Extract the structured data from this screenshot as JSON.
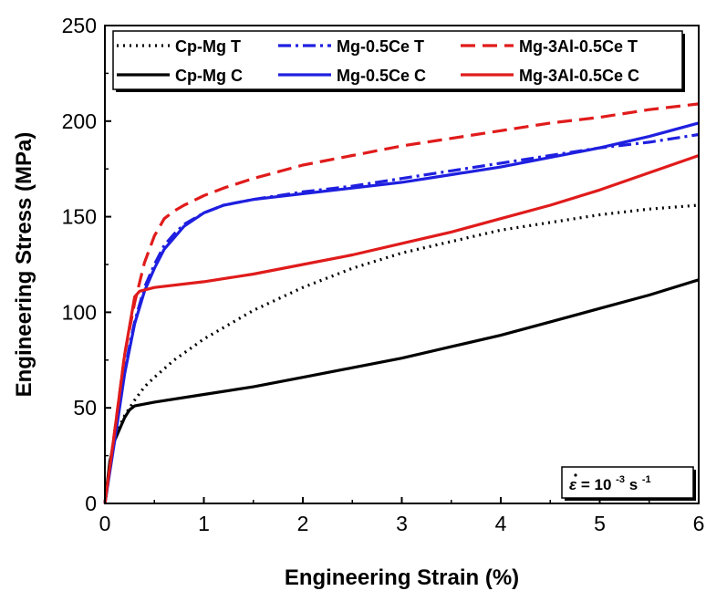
{
  "chart_data": {
    "type": "line",
    "xlabel": "Engineering Strain (%)",
    "ylabel": "Engineering Stress (MPa)",
    "xlim": [
      0,
      6
    ],
    "ylim": [
      0,
      250
    ],
    "xticks": [
      0,
      1,
      2,
      3,
      4,
      5,
      6
    ],
    "yticks": [
      0,
      50,
      100,
      150,
      200,
      250
    ],
    "grid": false,
    "legend_position": "top",
    "annotation": {
      "symbol": "ε",
      "text": "= 10",
      "exponent": "-3",
      "unit": " s",
      "unit_exponent": "-1"
    },
    "series": [
      {
        "name": "Cp-Mg T",
        "color": "#000000",
        "style": "dotted",
        "x": [
          0,
          0.1,
          0.2,
          0.3,
          0.4,
          0.5,
          0.7,
          1.0,
          1.5,
          2.0,
          2.5,
          3.0,
          3.5,
          4.0,
          4.5,
          5.0,
          5.5,
          6.0
        ],
        "y": [
          0,
          35,
          46,
          54,
          61,
          66,
          75,
          86,
          101,
          113,
          123,
          131,
          137,
          143,
          147,
          151,
          154,
          156
        ]
      },
      {
        "name": "Mg-0.5Ce T",
        "color": "#1f1fe0",
        "style": "dashdot",
        "x": [
          0,
          0.1,
          0.2,
          0.3,
          0.4,
          0.5,
          0.6,
          0.7,
          0.8,
          1.0,
          1.2,
          1.5,
          2.0,
          2.5,
          3.0,
          3.5,
          4.0,
          4.5,
          5.0,
          5.5,
          6.0
        ],
        "y": [
          0,
          35,
          70,
          95,
          113,
          125,
          135,
          141,
          146,
          152,
          156,
          159,
          163,
          166,
          170,
          174,
          178,
          182,
          186,
          189,
          193
        ]
      },
      {
        "name": "Mg-3Al-0.5Ce T",
        "color": "#e01b1b",
        "style": "dashed",
        "x": [
          0,
          0.1,
          0.2,
          0.3,
          0.4,
          0.5,
          0.6,
          0.7,
          0.8,
          1.0,
          1.2,
          1.5,
          2.0,
          2.5,
          3.0,
          3.5,
          4.0,
          4.5,
          5.0,
          5.5,
          6.0
        ],
        "y": [
          0,
          38,
          78,
          105,
          126,
          140,
          149,
          153,
          156,
          161,
          165,
          170,
          177,
          182,
          187,
          191,
          195,
          199,
          202,
          206,
          209
        ]
      },
      {
        "name": "Cp-Mg C",
        "color": "#000000",
        "style": "solid",
        "x": [
          0,
          0.05,
          0.1,
          0.2,
          0.25,
          0.3,
          0.5,
          1.0,
          1.5,
          2.0,
          2.5,
          3.0,
          3.5,
          4.0,
          4.5,
          5.0,
          5.5,
          6.0
        ],
        "y": [
          0,
          22,
          33,
          45,
          49,
          51,
          53,
          57,
          61,
          66,
          71,
          76,
          82,
          88,
          95,
          102,
          109,
          117
        ]
      },
      {
        "name": "Mg-0.5Ce C",
        "color": "#1f1fe0",
        "style": "solid",
        "x": [
          0,
          0.1,
          0.2,
          0.3,
          0.4,
          0.5,
          0.6,
          0.7,
          0.8,
          1.0,
          1.2,
          1.5,
          2.0,
          2.5,
          3.0,
          3.5,
          4.0,
          4.5,
          5.0,
          5.5,
          6.0
        ],
        "y": [
          0,
          33,
          68,
          94,
          111,
          123,
          133,
          139,
          145,
          152,
          156,
          159,
          162,
          165,
          168,
          172,
          176,
          181,
          186,
          192,
          199
        ]
      },
      {
        "name": "Mg-3Al-0.5Ce C",
        "color": "#e01b1b",
        "style": "solid",
        "x": [
          0,
          0.1,
          0.2,
          0.3,
          0.35,
          0.5,
          1.0,
          1.5,
          2.0,
          2.5,
          3.0,
          3.5,
          4.0,
          4.5,
          5.0,
          5.5,
          6.0
        ],
        "y": [
          0,
          38,
          78,
          108,
          111,
          113,
          116,
          120,
          125,
          130,
          136,
          142,
          149,
          156,
          164,
          173,
          182
        ]
      }
    ]
  }
}
